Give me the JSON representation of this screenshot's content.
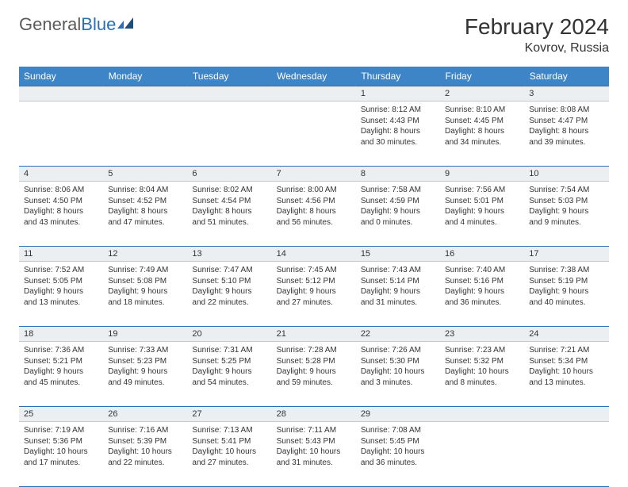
{
  "brand": {
    "part1": "General",
    "part2": "Blue"
  },
  "title": "February 2024",
  "location": "Kovrov, Russia",
  "colors": {
    "header_bg": "#3d85c6",
    "header_text": "#ffffff",
    "rule": "#2b6fb3",
    "daynum_bg": "#eceff1",
    "text": "#333333",
    "logo_gray": "#5a5a5a",
    "logo_blue": "#2b6fb3"
  },
  "weekdays": [
    "Sunday",
    "Monday",
    "Tuesday",
    "Wednesday",
    "Thursday",
    "Friday",
    "Saturday"
  ],
  "weeks": [
    [
      {
        "n": "",
        "lines": []
      },
      {
        "n": "",
        "lines": []
      },
      {
        "n": "",
        "lines": []
      },
      {
        "n": "",
        "lines": []
      },
      {
        "n": "1",
        "lines": [
          "Sunrise: 8:12 AM",
          "Sunset: 4:43 PM",
          "Daylight: 8 hours",
          "and 30 minutes."
        ]
      },
      {
        "n": "2",
        "lines": [
          "Sunrise: 8:10 AM",
          "Sunset: 4:45 PM",
          "Daylight: 8 hours",
          "and 34 minutes."
        ]
      },
      {
        "n": "3",
        "lines": [
          "Sunrise: 8:08 AM",
          "Sunset: 4:47 PM",
          "Daylight: 8 hours",
          "and 39 minutes."
        ]
      }
    ],
    [
      {
        "n": "4",
        "lines": [
          "Sunrise: 8:06 AM",
          "Sunset: 4:50 PM",
          "Daylight: 8 hours",
          "and 43 minutes."
        ]
      },
      {
        "n": "5",
        "lines": [
          "Sunrise: 8:04 AM",
          "Sunset: 4:52 PM",
          "Daylight: 8 hours",
          "and 47 minutes."
        ]
      },
      {
        "n": "6",
        "lines": [
          "Sunrise: 8:02 AM",
          "Sunset: 4:54 PM",
          "Daylight: 8 hours",
          "and 51 minutes."
        ]
      },
      {
        "n": "7",
        "lines": [
          "Sunrise: 8:00 AM",
          "Sunset: 4:56 PM",
          "Daylight: 8 hours",
          "and 56 minutes."
        ]
      },
      {
        "n": "8",
        "lines": [
          "Sunrise: 7:58 AM",
          "Sunset: 4:59 PM",
          "Daylight: 9 hours",
          "and 0 minutes."
        ]
      },
      {
        "n": "9",
        "lines": [
          "Sunrise: 7:56 AM",
          "Sunset: 5:01 PM",
          "Daylight: 9 hours",
          "and 4 minutes."
        ]
      },
      {
        "n": "10",
        "lines": [
          "Sunrise: 7:54 AM",
          "Sunset: 5:03 PM",
          "Daylight: 9 hours",
          "and 9 minutes."
        ]
      }
    ],
    [
      {
        "n": "11",
        "lines": [
          "Sunrise: 7:52 AM",
          "Sunset: 5:05 PM",
          "Daylight: 9 hours",
          "and 13 minutes."
        ]
      },
      {
        "n": "12",
        "lines": [
          "Sunrise: 7:49 AM",
          "Sunset: 5:08 PM",
          "Daylight: 9 hours",
          "and 18 minutes."
        ]
      },
      {
        "n": "13",
        "lines": [
          "Sunrise: 7:47 AM",
          "Sunset: 5:10 PM",
          "Daylight: 9 hours",
          "and 22 minutes."
        ]
      },
      {
        "n": "14",
        "lines": [
          "Sunrise: 7:45 AM",
          "Sunset: 5:12 PM",
          "Daylight: 9 hours",
          "and 27 minutes."
        ]
      },
      {
        "n": "15",
        "lines": [
          "Sunrise: 7:43 AM",
          "Sunset: 5:14 PM",
          "Daylight: 9 hours",
          "and 31 minutes."
        ]
      },
      {
        "n": "16",
        "lines": [
          "Sunrise: 7:40 AM",
          "Sunset: 5:16 PM",
          "Daylight: 9 hours",
          "and 36 minutes."
        ]
      },
      {
        "n": "17",
        "lines": [
          "Sunrise: 7:38 AM",
          "Sunset: 5:19 PM",
          "Daylight: 9 hours",
          "and 40 minutes."
        ]
      }
    ],
    [
      {
        "n": "18",
        "lines": [
          "Sunrise: 7:36 AM",
          "Sunset: 5:21 PM",
          "Daylight: 9 hours",
          "and 45 minutes."
        ]
      },
      {
        "n": "19",
        "lines": [
          "Sunrise: 7:33 AM",
          "Sunset: 5:23 PM",
          "Daylight: 9 hours",
          "and 49 minutes."
        ]
      },
      {
        "n": "20",
        "lines": [
          "Sunrise: 7:31 AM",
          "Sunset: 5:25 PM",
          "Daylight: 9 hours",
          "and 54 minutes."
        ]
      },
      {
        "n": "21",
        "lines": [
          "Sunrise: 7:28 AM",
          "Sunset: 5:28 PM",
          "Daylight: 9 hours",
          "and 59 minutes."
        ]
      },
      {
        "n": "22",
        "lines": [
          "Sunrise: 7:26 AM",
          "Sunset: 5:30 PM",
          "Daylight: 10 hours",
          "and 3 minutes."
        ]
      },
      {
        "n": "23",
        "lines": [
          "Sunrise: 7:23 AM",
          "Sunset: 5:32 PM",
          "Daylight: 10 hours",
          "and 8 minutes."
        ]
      },
      {
        "n": "24",
        "lines": [
          "Sunrise: 7:21 AM",
          "Sunset: 5:34 PM",
          "Daylight: 10 hours",
          "and 13 minutes."
        ]
      }
    ],
    [
      {
        "n": "25",
        "lines": [
          "Sunrise: 7:19 AM",
          "Sunset: 5:36 PM",
          "Daylight: 10 hours",
          "and 17 minutes."
        ]
      },
      {
        "n": "26",
        "lines": [
          "Sunrise: 7:16 AM",
          "Sunset: 5:39 PM",
          "Daylight: 10 hours",
          "and 22 minutes."
        ]
      },
      {
        "n": "27",
        "lines": [
          "Sunrise: 7:13 AM",
          "Sunset: 5:41 PM",
          "Daylight: 10 hours",
          "and 27 minutes."
        ]
      },
      {
        "n": "28",
        "lines": [
          "Sunrise: 7:11 AM",
          "Sunset: 5:43 PM",
          "Daylight: 10 hours",
          "and 31 minutes."
        ]
      },
      {
        "n": "29",
        "lines": [
          "Sunrise: 7:08 AM",
          "Sunset: 5:45 PM",
          "Daylight: 10 hours",
          "and 36 minutes."
        ]
      },
      {
        "n": "",
        "lines": []
      },
      {
        "n": "",
        "lines": []
      }
    ]
  ]
}
